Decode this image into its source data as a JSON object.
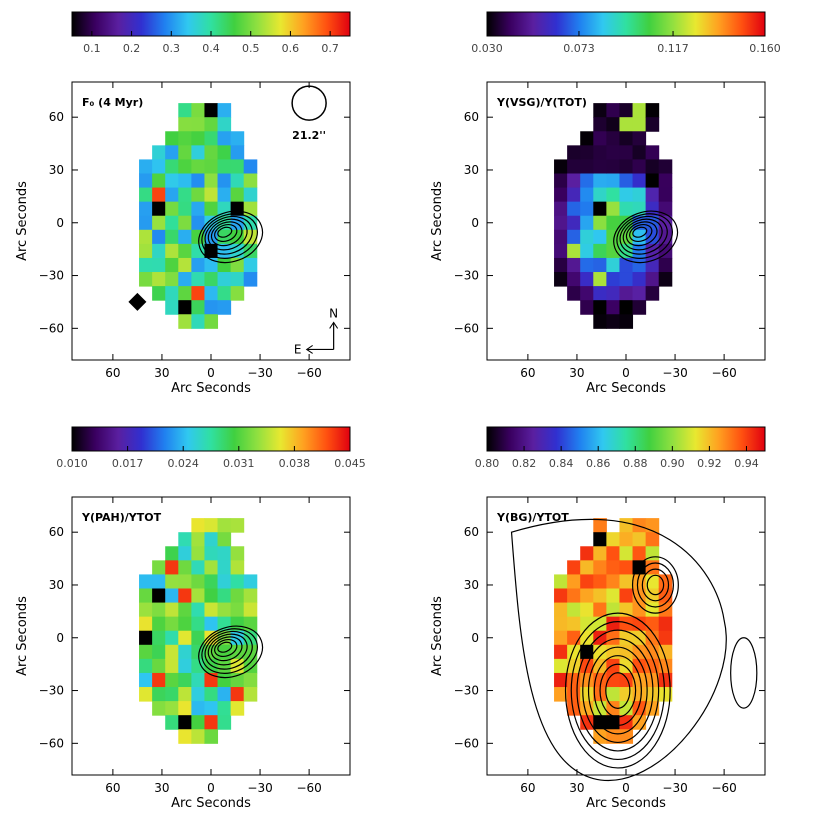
{
  "figure": {
    "x_axis_title": "Arc Seconds",
    "y_axis_title": "Arc Seconds",
    "x_tick_labels": [
      "60",
      "30",
      "0",
      "−30",
      "−60"
    ],
    "y_tick_labels": [
      "60",
      "30",
      "0",
      "−30",
      "−60"
    ],
    "colormap_stops": [
      "#000000",
      "#3a0060",
      "#5a1fa0",
      "#3030d0",
      "#2080f0",
      "#30c8f0",
      "#30e0a0",
      "#40d040",
      "#90e040",
      "#e8e830",
      "#ffa020",
      "#ff5010",
      "#e00010"
    ]
  },
  "chart_data": [
    {
      "type": "heatmap",
      "panel": "top-left",
      "title": "F₀ (4 Myr)",
      "xlabel": "Arc Seconds",
      "ylabel": "Arc Seconds",
      "xlim": [
        85,
        -85
      ],
      "ylim": [
        -78,
        80
      ],
      "colorbar": {
        "vmin": 0.05,
        "vmax": 0.75,
        "tick_labels": [
          "0.1",
          "0.2",
          "0.3",
          "0.4",
          "0.5",
          "0.6",
          "0.7"
        ],
        "ticks": [
          0.1,
          0.2,
          0.3,
          0.4,
          0.5,
          0.6,
          0.7
        ]
      },
      "beam": {
        "label": "21.2''"
      },
      "compass": {
        "north": "N",
        "east": "E"
      },
      "has_diamond_marker": true,
      "contours": "compact",
      "value_range": [
        0.05,
        0.75
      ],
      "typical_value": 0.42,
      "peak_value": 0.7
    },
    {
      "type": "heatmap",
      "panel": "top-right",
      "title": "Y(VSG)/Y(TOT)",
      "xlabel": "Arc Seconds",
      "ylabel": "Arc Seconds",
      "xlim": [
        85,
        -85
      ],
      "ylim": [
        -78,
        80
      ],
      "colorbar": {
        "vmin": 0.03,
        "vmax": 0.16,
        "tick_labels": [
          "0.030",
          "0.073",
          "0.117",
          "0.160"
        ],
        "ticks": [
          0.03,
          0.073,
          0.117,
          0.16
        ]
      },
      "contours": "compact",
      "value_range": [
        0.03,
        0.16
      ],
      "typical_value": 0.06,
      "peak_value": 0.12
    },
    {
      "type": "heatmap",
      "panel": "bottom-left",
      "title": "Y(PAH)/YTOT",
      "xlabel": "Arc Seconds",
      "ylabel": "Arc Seconds",
      "xlim": [
        85,
        -85
      ],
      "ylim": [
        -78,
        80
      ],
      "colorbar": {
        "vmin": 0.01,
        "vmax": 0.045,
        "tick_labels": [
          "0.010",
          "0.017",
          "0.024",
          "0.031",
          "0.038",
          "0.045"
        ],
        "ticks": [
          0.01,
          0.017,
          0.024,
          0.031,
          0.038,
          0.045
        ]
      },
      "contours": "compact",
      "value_range": [
        0.01,
        0.045
      ],
      "typical_value": 0.03,
      "peak_value": 0.043
    },
    {
      "type": "heatmap",
      "panel": "bottom-right",
      "title": "Y(BG)/YTOT",
      "xlabel": "Arc Seconds",
      "ylabel": "Arc Seconds",
      "xlim": [
        85,
        -85
      ],
      "ylim": [
        -78,
        80
      ],
      "colorbar": {
        "vmin": 0.8,
        "vmax": 0.95,
        "tick_labels": [
          "0.80",
          "0.82",
          "0.84",
          "0.86",
          "0.88",
          "0.90",
          "0.92",
          "0.94"
        ],
        "ticks": [
          0.8,
          0.82,
          0.84,
          0.86,
          0.88,
          0.9,
          0.92,
          0.94
        ]
      },
      "contours": "extended",
      "value_range": [
        0.8,
        0.95
      ],
      "typical_value": 0.925,
      "peak_value": 0.945
    }
  ]
}
